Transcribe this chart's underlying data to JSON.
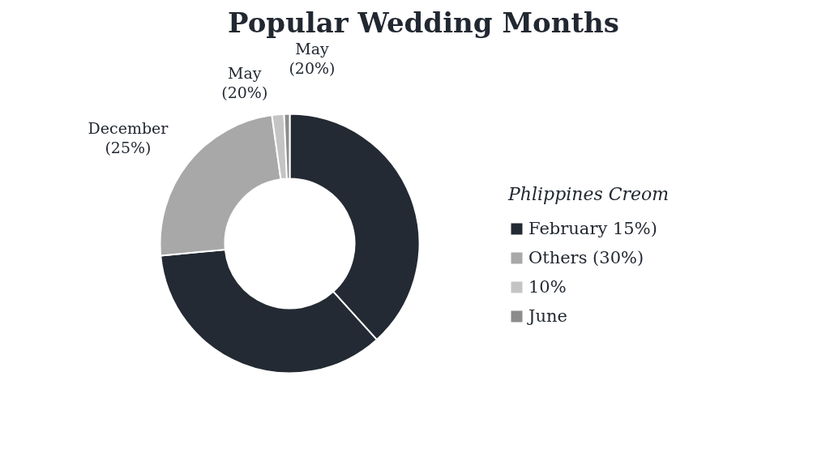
{
  "chart_data": {
    "type": "donut",
    "title": "Popular Wedding Months",
    "legend_title": "Phlippines Creom",
    "legend": "right",
    "categories": [
      "February 15%)",
      null,
      "Others (30%)",
      "10%",
      "June"
    ],
    "values": [
      38.3,
      35.2,
      24.3,
      1.5,
      0.7
    ],
    "colors": [
      "#232a33",
      "#232a33",
      "#a8a8a8",
      "#c4c4c4",
      "#8c8c8c"
    ],
    "annotations": [
      {
        "text": "December\n(25%)",
        "x": "Others (30%)"
      },
      {
        "text": "May\n(20%)",
        "x": "10%"
      },
      {
        "text": "May\n(20%)",
        "x": "June"
      }
    ]
  }
}
